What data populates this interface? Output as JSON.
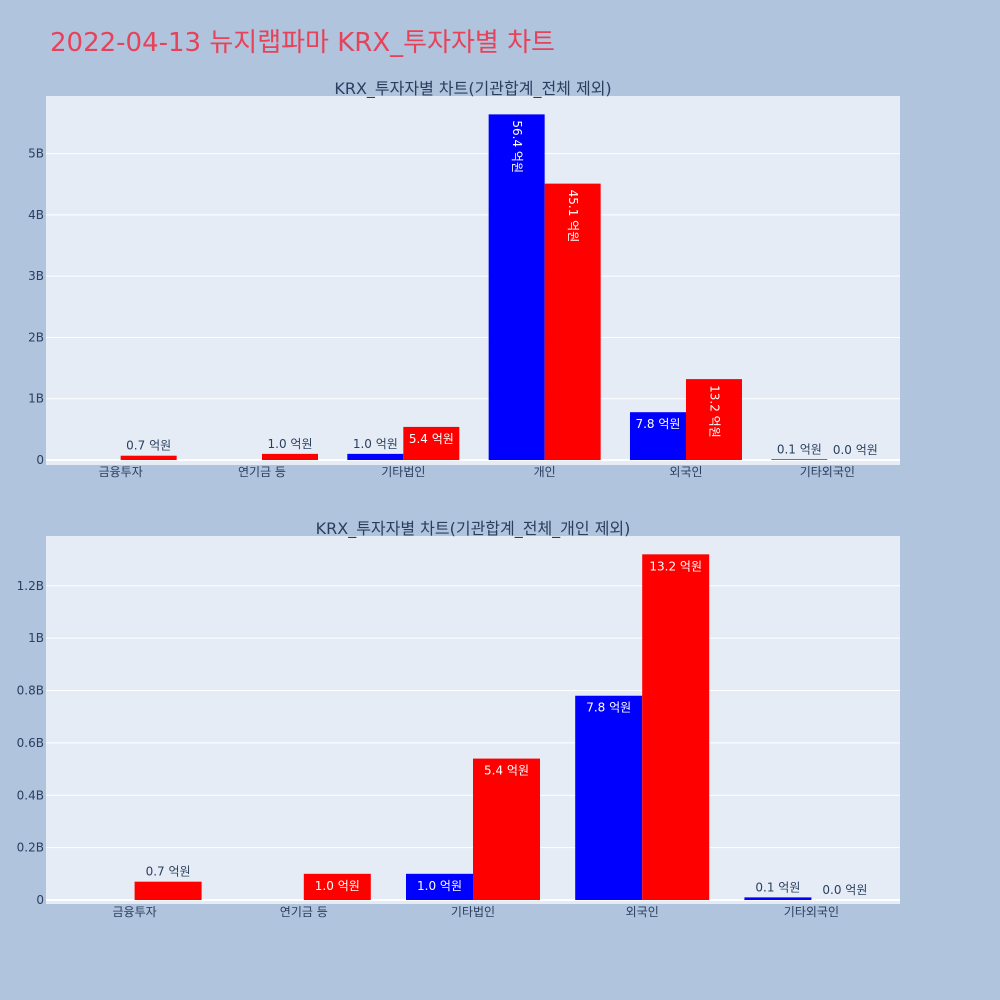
{
  "header": {
    "title": "2022-04-13 뉴지랩파마 KRX_투자자별 차트"
  },
  "colors": {
    "buy": "#0000ff",
    "sell": "#ff0000",
    "page_bg": "#b0c4de",
    "plot_bg": "#e5ecf6",
    "title": "#e8425a"
  },
  "chart_data": [
    {
      "type": "bar",
      "title": "KRX_투자자별 차트(기관합계_전체 제외)",
      "categories": [
        "금융투자",
        "연기금 등",
        "기타법인",
        "개인",
        "외국인",
        "기타외국인"
      ],
      "series": [
        {
          "values": [
            0,
            0,
            100000000,
            5640000000,
            780000000,
            10000000
          ],
          "labels": [
            "",
            "",
            "1.0 억원",
            "56.4 억원",
            "7.8 억원",
            "0.1 억원"
          ]
        },
        {
          "values": [
            70000000,
            100000000,
            540000000,
            4510000000,
            1320000000,
            0
          ],
          "labels": [
            "0.7 억원",
            "1.0 억원",
            "5.4 억원",
            "45.1 억원",
            "13.2 억원",
            "0.0 억원"
          ]
        }
      ],
      "yticks": [
        "0",
        "1B",
        "2B",
        "3B",
        "4B",
        "5B"
      ],
      "ylim": [
        0,
        5940000000
      ]
    },
    {
      "type": "bar",
      "title": "KRX_투자자별 차트(기관합계_전체_개인 제외)",
      "categories": [
        "금융투자",
        "연기금 등",
        "기타법인",
        "외국인",
        "기타외국인"
      ],
      "series": [
        {
          "values": [
            0,
            0,
            100000000,
            780000000,
            10000000
          ],
          "labels": [
            "",
            "",
            "1.0 억원",
            "7.8 억원",
            "0.1 억원"
          ]
        },
        {
          "values": [
            70000000,
            100000000,
            540000000,
            1320000000,
            0
          ],
          "labels": [
            "0.7 억원",
            "1.0 억원",
            "5.4 억원",
            "13.2 억원",
            "0.0 억원"
          ]
        }
      ],
      "yticks": [
        "0",
        "0.2B",
        "0.4B",
        "0.6B",
        "0.8B",
        "1B",
        "1.2B"
      ],
      "ylim": [
        0,
        1390000000
      ]
    }
  ]
}
